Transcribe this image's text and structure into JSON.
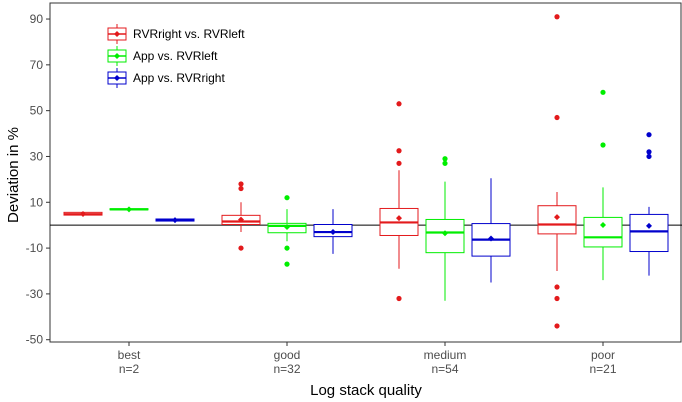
{
  "chart_data": {
    "type": "box",
    "title": "",
    "xlabel": "Log stack quality",
    "ylabel": "Deviation in %",
    "ylim": [
      -51,
      97
    ],
    "yticks": [
      -50,
      -30,
      -10,
      10,
      30,
      50,
      70,
      90
    ],
    "reference_line": 0,
    "grid": false,
    "legend_position": "top-left",
    "categories": [
      {
        "label": "best",
        "n_label": "n=2"
      },
      {
        "label": "good",
        "n_label": "n=32"
      },
      {
        "label": "medium",
        "n_label": "n=54"
      },
      {
        "label": "poor",
        "n_label": "n=21"
      }
    ],
    "series": [
      {
        "name": "RVRright vs. RVRleft",
        "color": "#e31a1c",
        "boxes": [
          {
            "q1": 4.4,
            "median": 4.8,
            "q3": 5.6,
            "whisker_low": 4.4,
            "whisker_high": 5.6,
            "mean": 4.9,
            "outliers": []
          },
          {
            "q1": 0.3,
            "median": 1.6,
            "q3": 4.3,
            "whisker_low": -3,
            "whisker_high": 10,
            "mean": 2.4,
            "outliers": [
              -10,
              16,
              18
            ]
          },
          {
            "q1": -4.5,
            "median": 1.2,
            "q3": 7.3,
            "whisker_low": -19,
            "whisker_high": 24,
            "mean": 3.1,
            "outliers": [
              -32,
              27,
              32.5,
              53
            ]
          },
          {
            "q1": -3.8,
            "median": 0.3,
            "q3": 8.5,
            "whisker_low": -20,
            "whisker_high": 14.5,
            "mean": 3.5,
            "outliers": [
              -44,
              -32,
              -27,
              47,
              91
            ]
          }
        ]
      },
      {
        "name": "App vs. RVRleft",
        "color": "#00ee00",
        "boxes": [
          {
            "q1": 6.7,
            "median": 6.9,
            "q3": 7.2,
            "whisker_low": 6.7,
            "whisker_high": 7.2,
            "mean": 6.9,
            "outliers": []
          },
          {
            "q1": -3.3,
            "median": -0.3,
            "q3": 0.8,
            "whisker_low": -7,
            "whisker_high": 7,
            "mean": -0.8,
            "outliers": [
              -17,
              -10,
              12
            ]
          },
          {
            "q1": -12,
            "median": -3.2,
            "q3": 2.5,
            "whisker_low": -33,
            "whisker_high": 19,
            "mean": -3.5,
            "outliers": [
              27,
              29
            ]
          },
          {
            "q1": -9.5,
            "median": -5.3,
            "q3": 3.4,
            "whisker_low": -24,
            "whisker_high": 16.5,
            "mean": 0.1,
            "outliers": [
              35,
              58
            ]
          }
        ]
      },
      {
        "name": "App vs. RVRright",
        "color": "#0000cc",
        "boxes": [
          {
            "q1": 1.8,
            "median": 2.2,
            "q3": 2.7,
            "whisker_low": 1.8,
            "whisker_high": 2.7,
            "mean": 2.2,
            "outliers": []
          },
          {
            "q1": -5,
            "median": -3,
            "q3": 0.3,
            "whisker_low": -12.5,
            "whisker_high": 7,
            "mean": -3,
            "outliers": []
          },
          {
            "q1": -13.5,
            "median": -6.3,
            "q3": 0.7,
            "whisker_low": -25,
            "whisker_high": 20.5,
            "mean": -5.8,
            "outliers": []
          },
          {
            "q1": -11.5,
            "median": -2.7,
            "q3": 4.7,
            "whisker_low": -22,
            "whisker_high": 8,
            "mean": -0.3,
            "outliers": [
              30,
              32,
              39.5
            ]
          }
        ]
      }
    ]
  }
}
